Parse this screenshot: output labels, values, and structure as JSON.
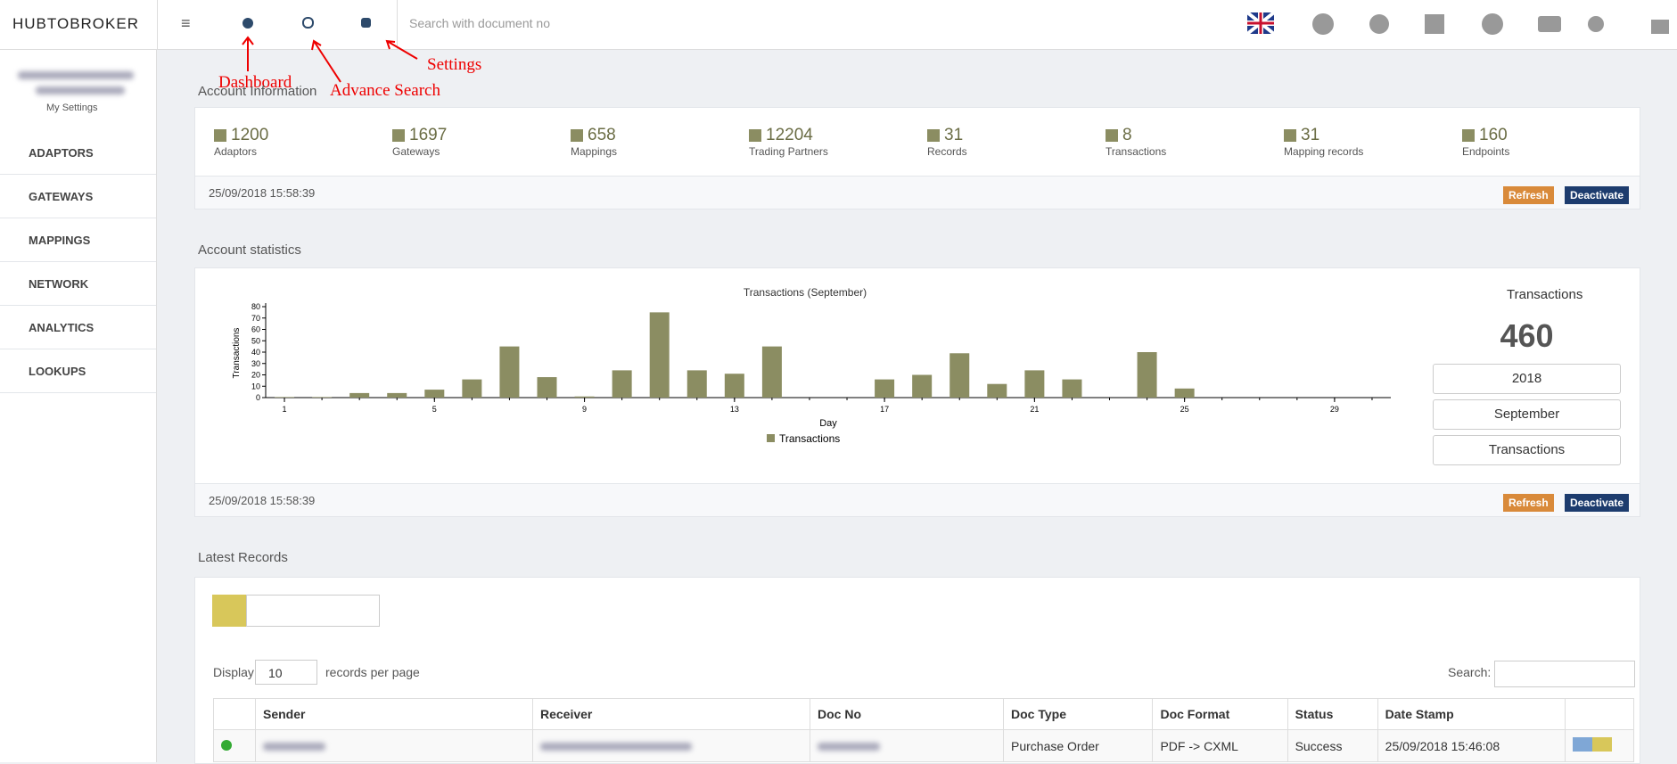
{
  "header": {
    "logo": "HUBTOBROKER",
    "search_placeholder": "Search with document no"
  },
  "annotations": {
    "dashboard": "Dashboard",
    "advance_search": "Advance Search",
    "settings": "Settings"
  },
  "sidebar": {
    "my_settings": "My Settings",
    "menu": [
      "ADAPTORS",
      "GATEWAYS",
      "MAPPINGS",
      "NETWORK",
      "ANALYTICS",
      "LOOKUPS"
    ]
  },
  "account_information": {
    "title": "Account Information",
    "stats": [
      {
        "value": 1200,
        "label": "Adaptors"
      },
      {
        "value": 1697,
        "label": "Gateways"
      },
      {
        "value": 658,
        "label": "Mappings"
      },
      {
        "value": 12204,
        "label": "Trading Partners"
      },
      {
        "value": 31,
        "label": "Records"
      },
      {
        "value": 8,
        "label": "Transactions"
      },
      {
        "value": 31,
        "label": "Mapping records"
      },
      {
        "value": 160,
        "label": "Endpoints"
      }
    ],
    "timestamp": "25/09/2018 15:58:39",
    "buttons": [
      "Refresh",
      "Deactivate"
    ]
  },
  "account_statistics": {
    "title": "Account statistics",
    "chart_data": {
      "type": "bar",
      "title": "Transactions (September)",
      "x_label": "Day",
      "y_label": "Transactions",
      "x": [
        1,
        2,
        3,
        4,
        5,
        6,
        7,
        8,
        9,
        10,
        11,
        12,
        13,
        14,
        15,
        16,
        17,
        18,
        19,
        20,
        21,
        22,
        23,
        24,
        25,
        26,
        27,
        28,
        29,
        30
      ],
      "xlim": [
        0.5,
        30.5
      ],
      "xticks": [
        1,
        5,
        9,
        13,
        17,
        21,
        25,
        29
      ],
      "ylim": [
        0,
        80
      ],
      "yticks": [
        0,
        10,
        20,
        30,
        40,
        50,
        60,
        70,
        80
      ],
      "series": [
        {
          "name": "Transactions",
          "color": "#8b8d62",
          "values": [
            0.5,
            0.5,
            4,
            4,
            7,
            16,
            45,
            18,
            1,
            24,
            75,
            24,
            21,
            45,
            0,
            0,
            16,
            20,
            39,
            12,
            24,
            16,
            0,
            40,
            8,
            0,
            0,
            0,
            0,
            0
          ]
        }
      ]
    },
    "summary": {
      "label": "Transactions",
      "total": 460,
      "selects": [
        "2018",
        "September",
        "Transactions"
      ]
    },
    "timestamp": "25/09/2018 15:58:39",
    "buttons": [
      "Refresh",
      "Deactivate"
    ]
  },
  "latest_records": {
    "title": "Latest Records",
    "display": "Display",
    "per_page": "10",
    "records_per_page": "records per page",
    "search": "Search:",
    "columns": [
      "Sender",
      "Receiver",
      "Doc No",
      "Doc Type",
      "Doc Format",
      "Status",
      "Date Stamp"
    ],
    "rows": [
      {
        "doc_type": "Purchase Order",
        "doc_format": "PDF -> CXML",
        "status": "Success",
        "date_stamp": "25/09/2018 15:46:08"
      }
    ]
  }
}
